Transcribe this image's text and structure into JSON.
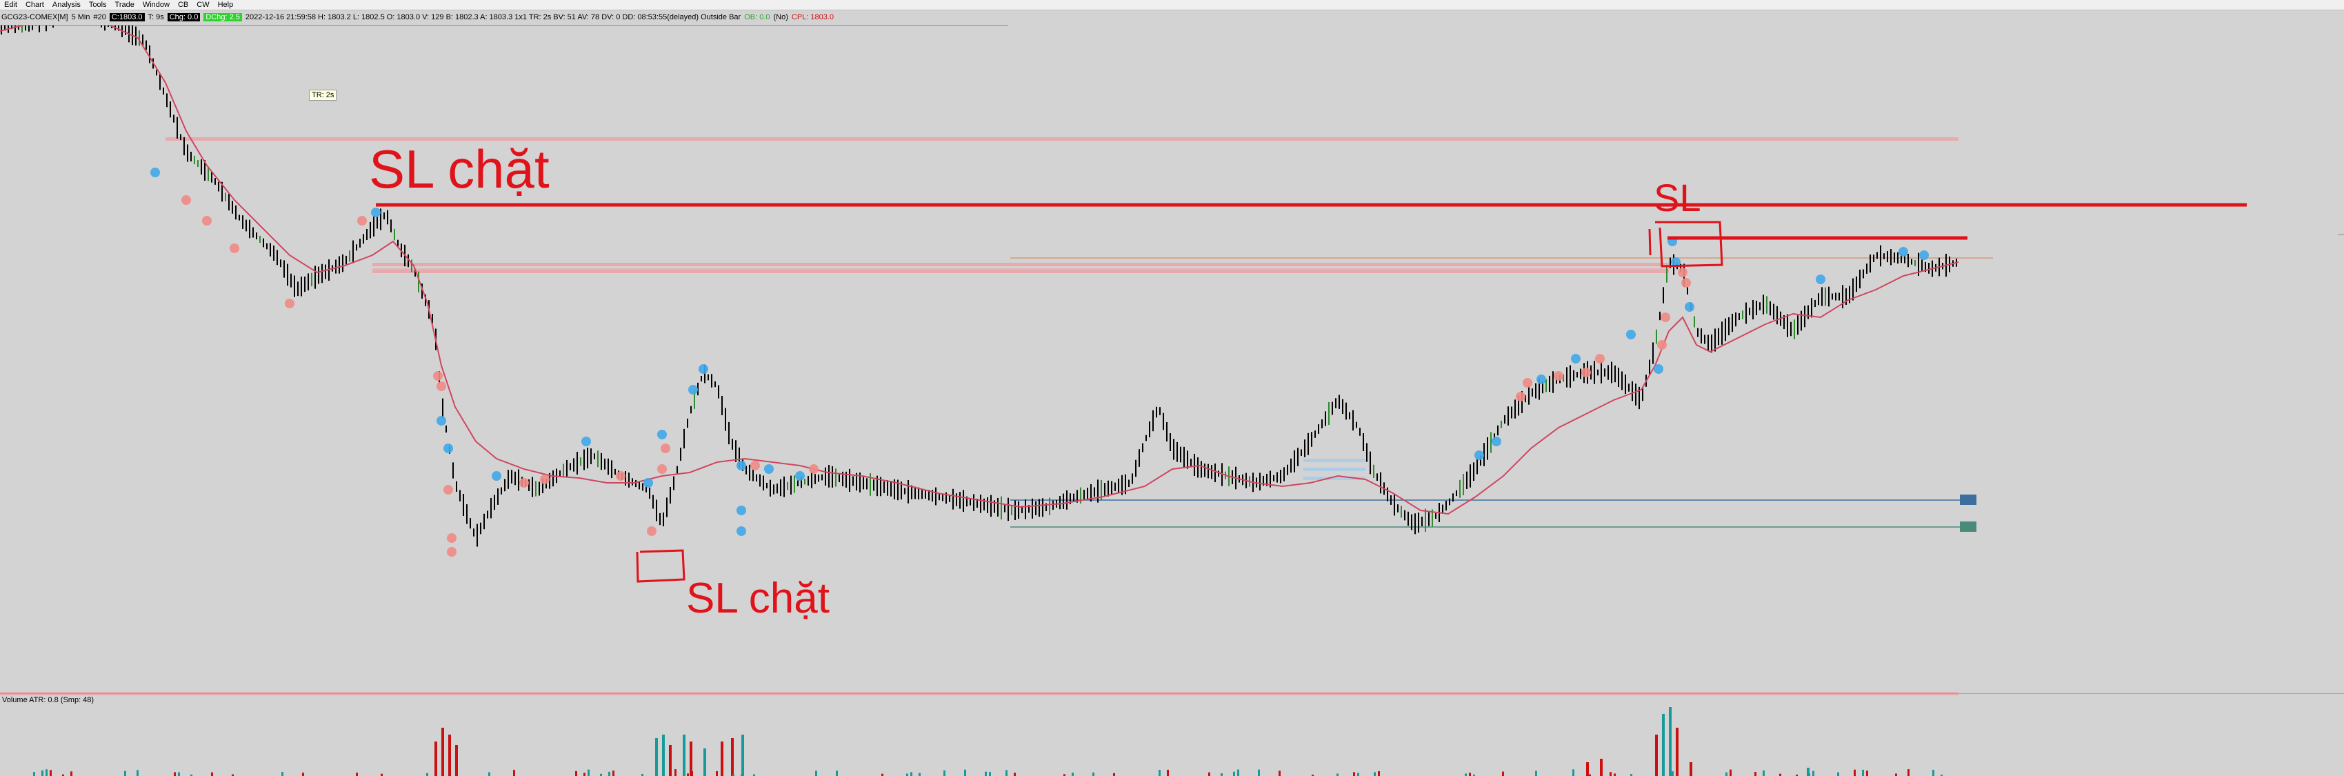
{
  "menu": [
    "Edit",
    "Chart",
    "Analysis",
    "Tools",
    "Trade",
    "Window",
    "CB",
    "CW",
    "Help"
  ],
  "info_bar": {
    "symbol": "GCG23-COMEX[M]",
    "interval": "5 Min",
    "bars": "#20",
    "c_chip": "C:1803.0",
    "t": "T: 9s",
    "chg_chip": "Chg: 0.0",
    "dchg_chip": "DChg: 2.5",
    "details": "2022-12-16 21:59:58 H: 1803.2 L: 1802.5 O: 1803.0 V: 129 B: 1802.3 A: 1803.3 1x1 TR: 2s BV: 51 AV: 78 DV: 0 DD: 08:53:55(delayed) Outside Bar",
    "ob": "OB: 0.0",
    "no": "(No)",
    "cpl": "CPL: 1803.0"
  },
  "tr_box": "TR: 2s",
  "volume_label": "Volume  ATR: 0.8   (Smp: 48)",
  "annotations": {
    "sl_top_left": "SL chặt",
    "sl_bottom": "SL chặt",
    "sl_right": "SL"
  },
  "colors": {
    "background": "#d3d3d3",
    "bull_bar": "#000000",
    "bear_bar": "#000000",
    "moving_average": "#d0465e",
    "annotation_red": "#e0121a",
    "zone_pink": "#e8a5a8",
    "dot_blue": "#3fa7e8",
    "dot_red": "#ef8a84",
    "volume_red": "#cc1010",
    "volume_teal": "#179a9a",
    "level_blue": "#3e6e9e",
    "level_green": "#4a8a7a"
  }
}
